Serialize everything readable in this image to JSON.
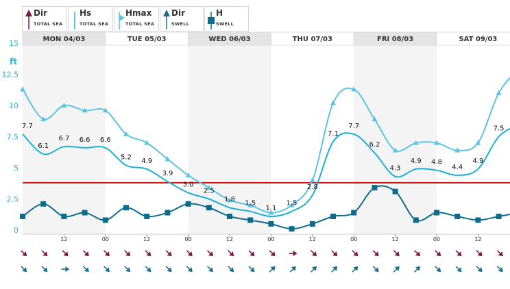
{
  "legend": [
    {
      "title": "Dir",
      "sub": "TOTAL SEA",
      "icon": "arrow-up-icon",
      "color": "#7a1848"
    },
    {
      "title": "Hs",
      "sub": "TOTAL SEA",
      "icon": "none",
      "color": "#1ab0d6"
    },
    {
      "title": "Hmax",
      "sub": "TOTAL SEA",
      "icon": "triangle-right-icon",
      "color": "#5bc3e0"
    },
    {
      "title": "Dir",
      "sub": "SWELL",
      "icon": "arrow-up-icon",
      "color": "#1a6e8e"
    },
    {
      "title": "H",
      "sub": "SWELL",
      "icon": "square-icon",
      "color": "#0d6b8c"
    }
  ],
  "chart_data": {
    "type": "line",
    "ylabel": "ft",
    "ylim": [
      0,
      15
    ],
    "yticks": [
      "0",
      "2.5",
      "5",
      "7.5",
      "10",
      "12.5",
      "15"
    ],
    "days": [
      "MON 04/03",
      "TUE 05/03",
      "WED 06/03",
      "THU 07/03",
      "FRI 08/03",
      "SAT 09/03"
    ],
    "hour_ticks": [
      "12",
      "00",
      "12",
      "00",
      "12",
      "00",
      "12",
      "00",
      "12",
      "00",
      "12",
      "00"
    ],
    "threshold": 3.8,
    "series": [
      {
        "key": "hs",
        "color": "#1ab0d6",
        "values": [
          7.7,
          6.1,
          6.7,
          6.6,
          6.6,
          5.2,
          4.9,
          3.9,
          3.0,
          2.5,
          1.8,
          1.5,
          1.1,
          1.5,
          2.8,
          7.1,
          7.7,
          6.2,
          4.3,
          4.9,
          4.8,
          4.4,
          4.9,
          7.5,
          8.5
        ],
        "labels": [
          "7.7",
          "6.1",
          "6.7",
          "6.6",
          "6.6",
          "5.2",
          "4.9",
          "3.9",
          "3.0",
          "2.5",
          "1.8",
          "1.5",
          "1.1",
          "1.5",
          "2.8",
          "7.1",
          "7.7",
          "6.2",
          "4.3",
          "4.9",
          "4.8",
          "4.4",
          "4.9",
          "7.5",
          ""
        ]
      },
      {
        "key": "hmax",
        "color": "#5bc3e0",
        "values": [
          11.3,
          8.9,
          10.0,
          9.6,
          9.6,
          7.7,
          7.0,
          5.7,
          4.4,
          3.4,
          2.4,
          2.0,
          1.4,
          2.0,
          4.0,
          10.2,
          11.3,
          8.9,
          6.4,
          7.0,
          7.0,
          6.4,
          7.0,
          11.0,
          13.0
        ]
      },
      {
        "key": "swell",
        "color": "#0d6b8c",
        "values": [
          1.1,
          2.1,
          1.1,
          1.4,
          0.8,
          1.8,
          1.1,
          1.4,
          2.1,
          1.8,
          1.1,
          0.8,
          0.5,
          0.1,
          0.5,
          1.1,
          1.4,
          3.4,
          3.1,
          0.8,
          1.4,
          1.1,
          0.8,
          1.1,
          1.4
        ]
      }
    ],
    "total_sea_dir_deg": [
      135,
      135,
      135,
      135,
      135,
      135,
      135,
      135,
      135,
      135,
      135,
      135,
      135,
      90,
      135,
      135,
      135,
      135,
      135,
      135,
      135,
      135,
      135,
      135,
      135
    ],
    "swell_dir_deg": [
      135,
      135,
      90,
      135,
      135,
      135,
      135,
      135,
      135,
      135,
      135,
      135,
      45,
      45,
      45,
      45,
      45,
      135,
      45,
      45,
      135,
      135,
      135,
      135,
      135
    ]
  }
}
